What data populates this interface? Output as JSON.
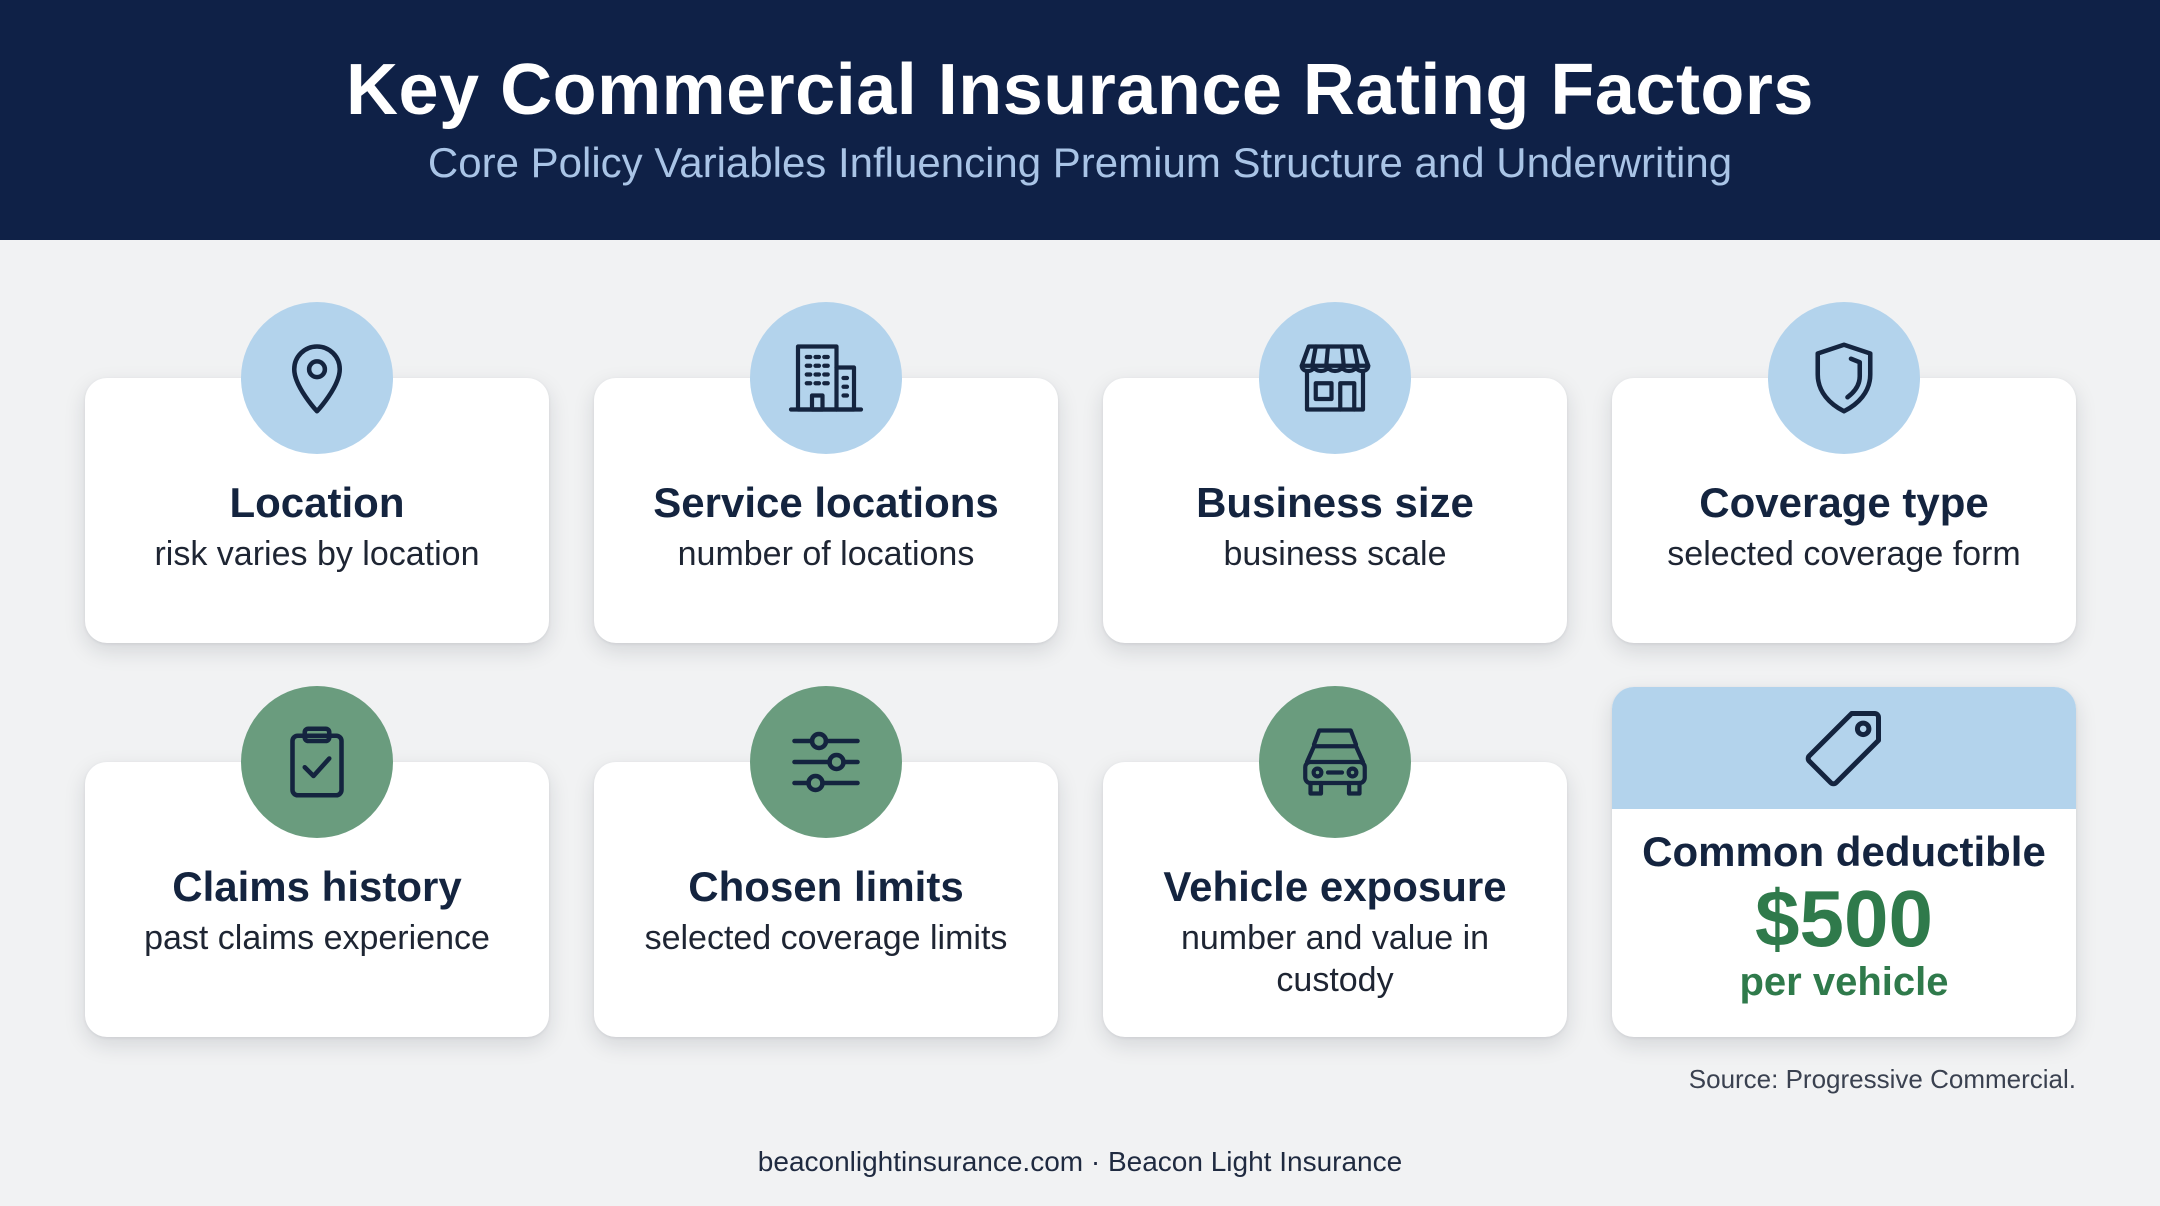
{
  "header": {
    "title": "Key Commercial Insurance Rating Factors",
    "subtitle": "Core Policy Variables Influencing Premium Structure and Underwriting"
  },
  "factors": [
    {
      "title": "Location",
      "description": "risk varies by location",
      "icon": "map-pin-icon"
    },
    {
      "title": "Service locations",
      "description": "number of locations",
      "icon": "building-icon"
    },
    {
      "title": "Business size",
      "description": "business scale",
      "icon": "storefront-icon"
    },
    {
      "title": "Coverage type",
      "description": "selected coverage form",
      "icon": "shield-icon"
    },
    {
      "title": "Claims history",
      "description": "past claims experience",
      "icon": "clipboard-check-icon"
    },
    {
      "title": "Chosen limits",
      "description": "selected coverage limits",
      "icon": "sliders-icon"
    },
    {
      "title": "Vehicle exposure",
      "description": "number and value in custody",
      "icon": "cars-icon"
    }
  ],
  "deductible": {
    "label": "Common deductible",
    "value": "$500",
    "unit": "per vehicle",
    "icon": "price-tag-icon"
  },
  "source": "Source: Progressive Commercial.",
  "footer": "beaconlightinsurance.com · Beacon Light Insurance",
  "colors": {
    "header_bg": "#0f2147",
    "subtitle": "#a9c4e6",
    "icon_circle_blue": "#b3d3ec",
    "icon_circle_green": "#6a9c7e",
    "deductible_green": "#2f7a4b",
    "page_bg": "#f1f2f3"
  }
}
